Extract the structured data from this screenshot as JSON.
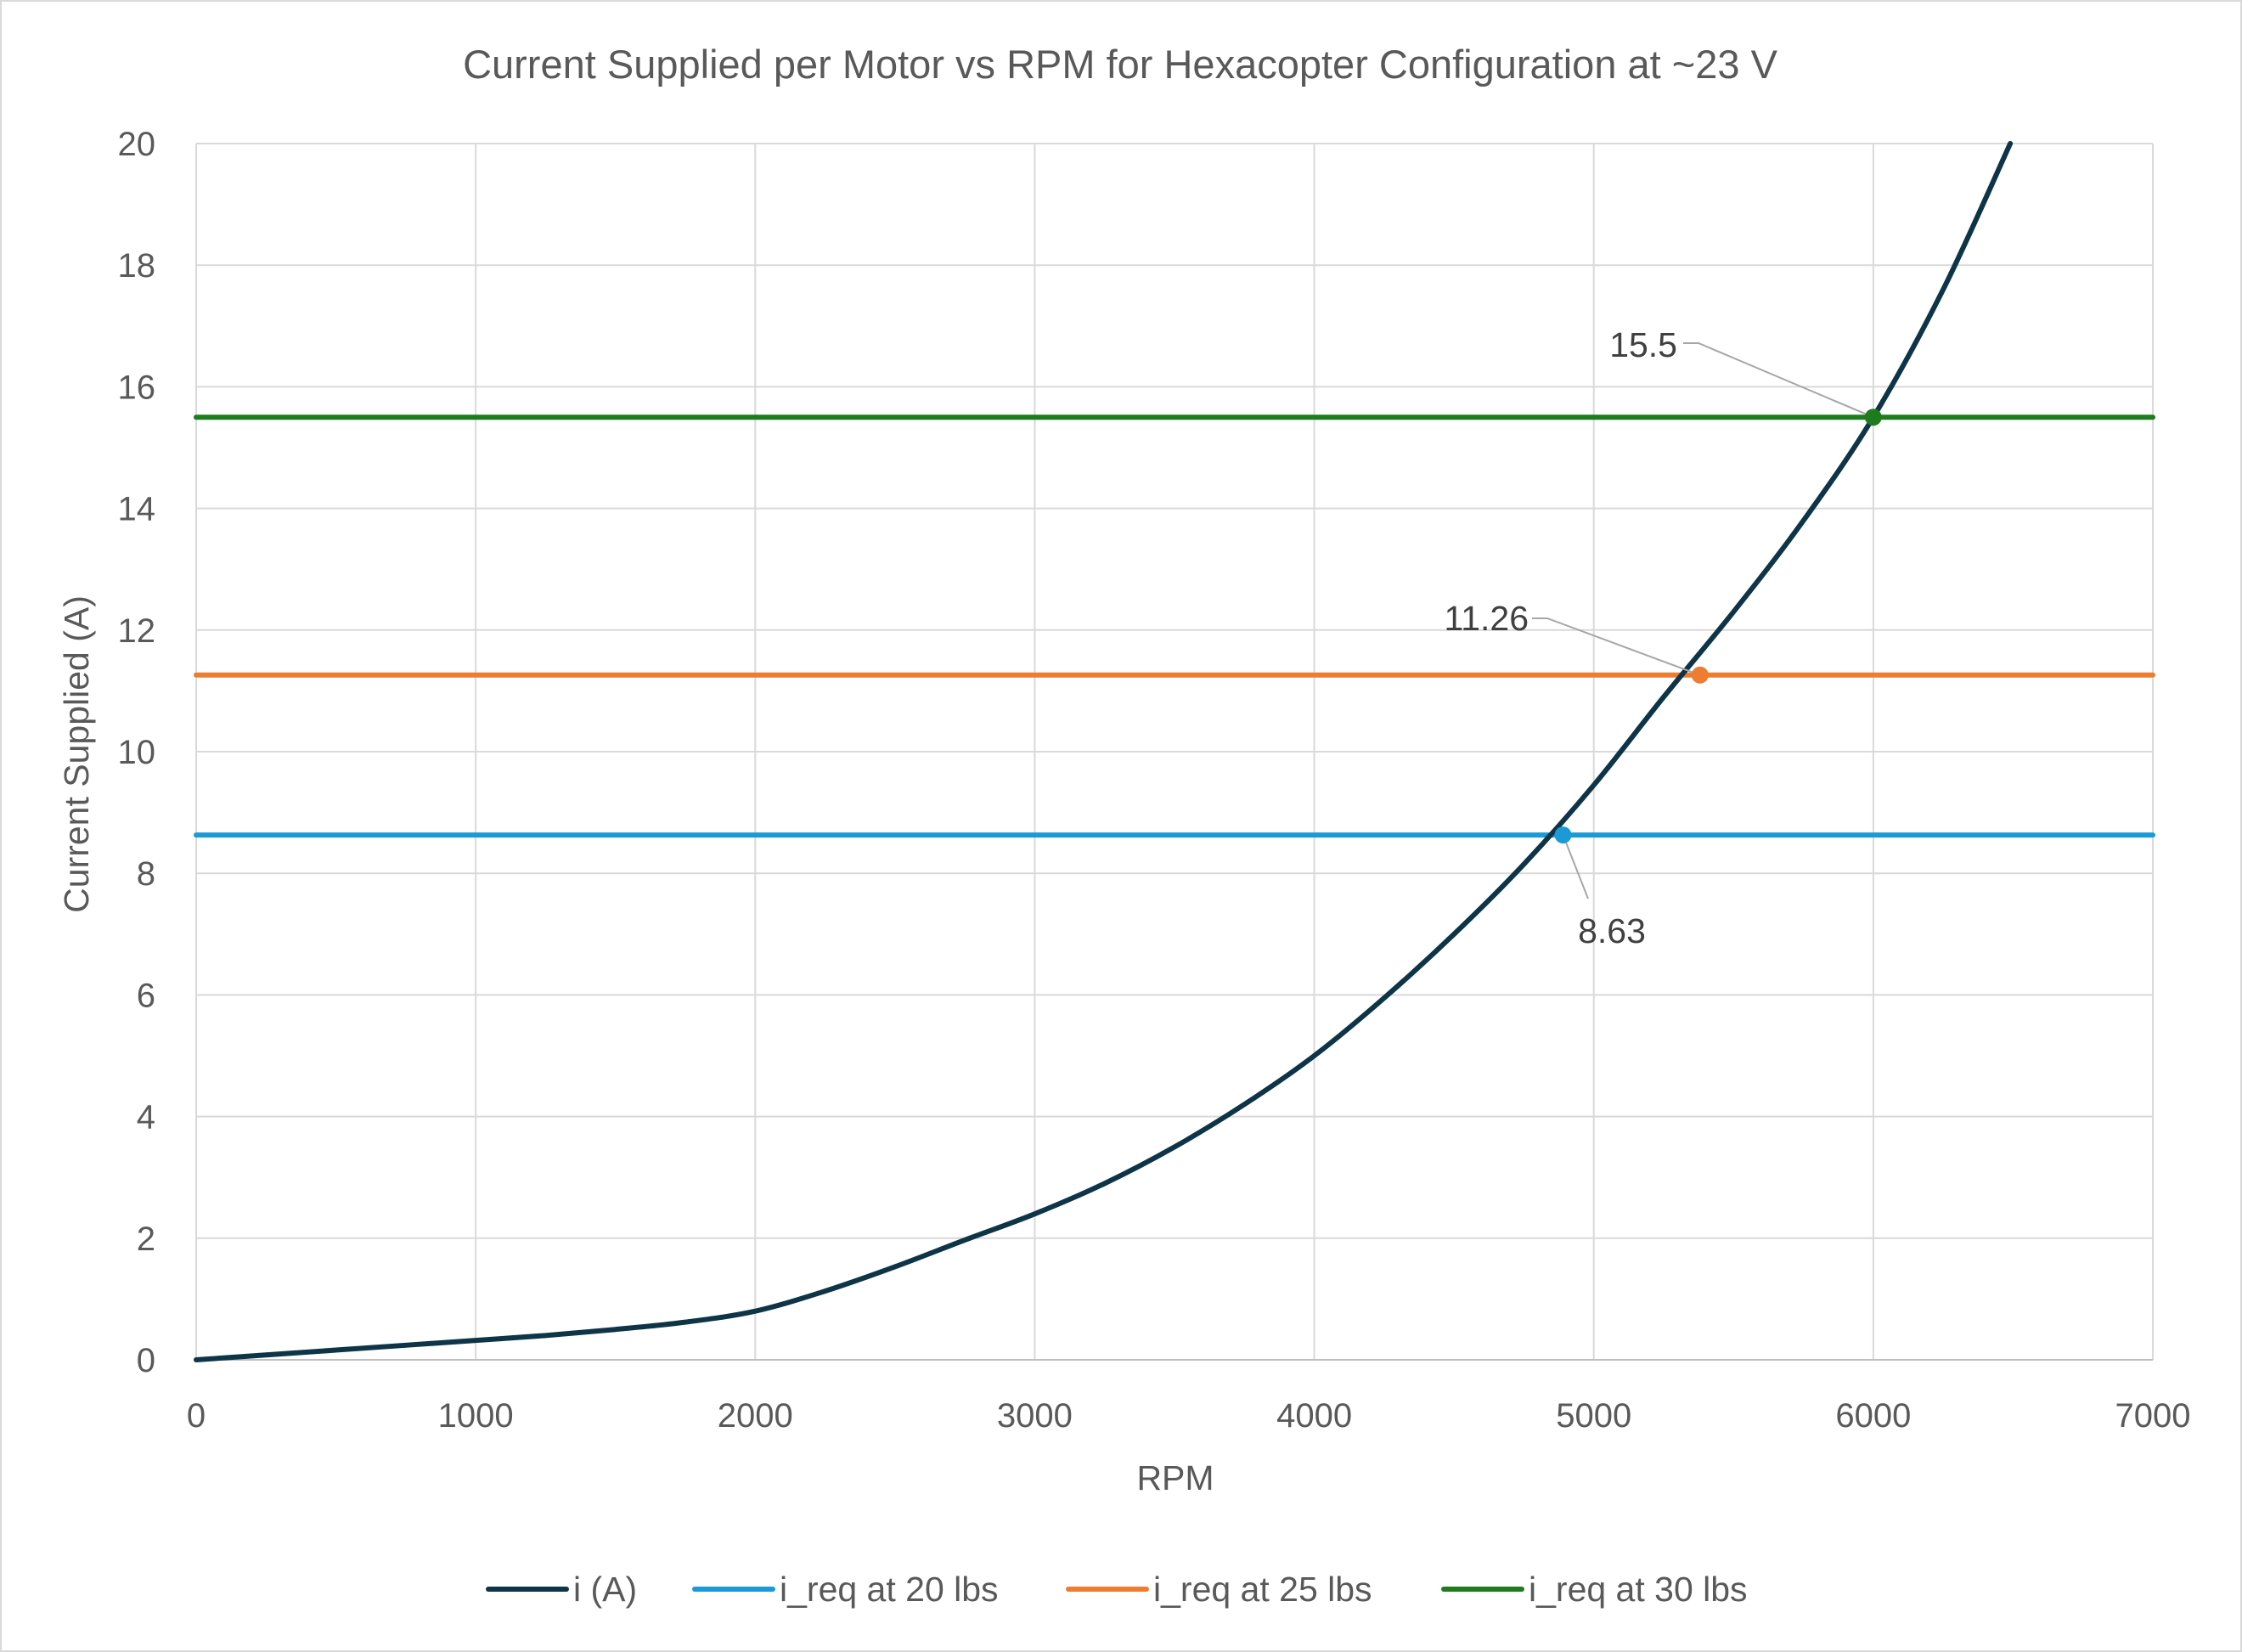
{
  "chart_data": {
    "type": "line",
    "title": "Current Supplied per Motor vs RPM for Hexacopter Configuration at ~23 V",
    "xlabel": "RPM",
    "ylabel": "Current Supplied (A)",
    "xlim": [
      0,
      7000
    ],
    "ylim": [
      0,
      20
    ],
    "x_ticks": [
      0,
      1000,
      2000,
      3000,
      4000,
      5000,
      6000,
      7000
    ],
    "y_ticks": [
      0,
      2,
      4,
      6,
      8,
      10,
      12,
      14,
      16,
      18,
      20
    ],
    "grid": true,
    "legend_position": "bottom",
    "series": [
      {
        "name": "i (A)",
        "color": "#0e3447",
        "x": [
          0,
          250,
          500,
          750,
          1000,
          1250,
          1500,
          1750,
          2000,
          2250,
          2500,
          2750,
          3000,
          3250,
          3500,
          3750,
          4000,
          4250,
          4500,
          4750,
          5000,
          5250,
          5500,
          5750,
          6000,
          6250,
          6500
        ],
        "y": [
          0,
          0.08,
          0.16,
          0.24,
          0.32,
          0.4,
          0.5,
          0.62,
          0.8,
          1.13,
          1.53,
          1.97,
          2.4,
          2.9,
          3.5,
          4.2,
          5.0,
          5.95,
          7.0,
          8.15,
          9.45,
          10.9,
          12.3,
          13.8,
          15.5,
          17.6,
          20.1
        ]
      },
      {
        "name": "i_req at 20 lbs",
        "color": "#1b9ad6",
        "x": [
          0,
          7000
        ],
        "y": [
          8.63,
          8.63
        ]
      },
      {
        "name": "i_req at 25 lbs",
        "color": "#ed7d31",
        "x": [
          0,
          7000
        ],
        "y": [
          11.26,
          11.26
        ]
      },
      {
        "name": "i_req at 30 lbs",
        "color": "#1e7b1e",
        "x": [
          0,
          7000
        ],
        "y": [
          15.5,
          15.5
        ]
      }
    ],
    "markers": [
      {
        "x": 4890,
        "y": 8.63,
        "color": "#1b9ad6",
        "label": "8.63"
      },
      {
        "x": 5380,
        "y": 11.26,
        "color": "#ed7d31",
        "label": "11.26"
      },
      {
        "x": 6000,
        "y": 15.5,
        "color": "#1e7b1e",
        "label": "15.5"
      }
    ]
  }
}
